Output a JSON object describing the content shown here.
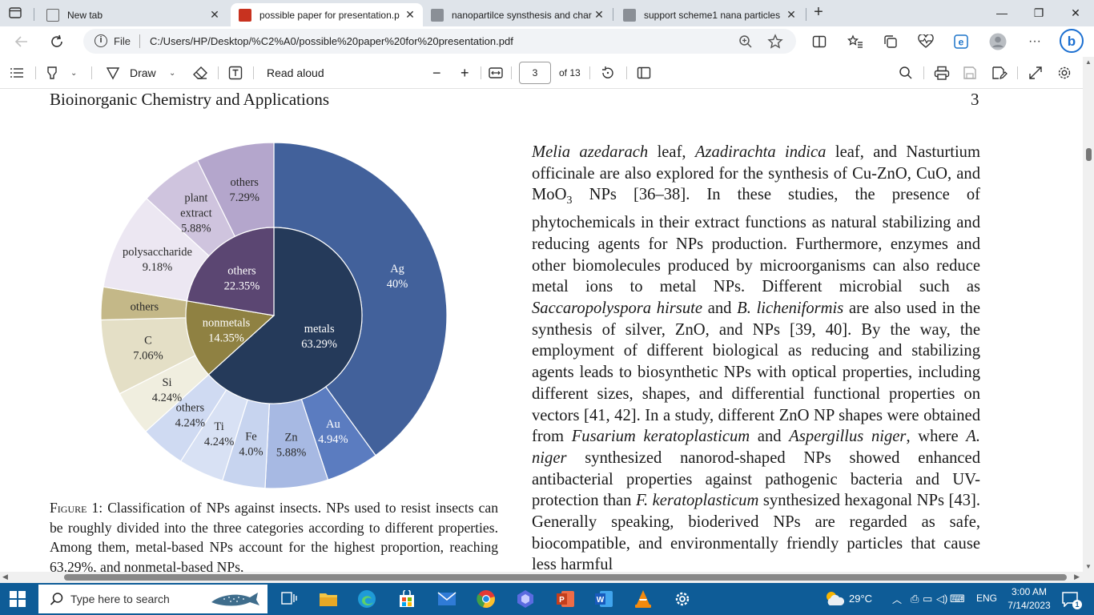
{
  "tabs": [
    {
      "label": "New tab",
      "icon": "newtab-page-icon"
    },
    {
      "label": "possible paper for presentation.p",
      "icon": "pdf-file-icon",
      "active": true
    },
    {
      "label": "nanopartilce synsthesis and char",
      "icon": "pdf-file-icon"
    },
    {
      "label": "support scheme1 nana particles",
      "icon": "pdf-file-icon"
    }
  ],
  "address": {
    "scheme_label": "File",
    "url": "C:/Users/HP/Desktop/%C2%A0/possible%20paper%20for%20presentation.pdf"
  },
  "pdf_toolbar": {
    "draw_label": "Draw",
    "read_aloud_label": "Read aloud",
    "page_current": "3",
    "page_total": "of 13"
  },
  "document": {
    "journal": "Bioinorganic Chemistry and Applications",
    "page_number": "3",
    "body_parts": [
      {
        "t": "Melia azedarach",
        "i": true
      },
      {
        "t": " leaf, "
      },
      {
        "t": "Azadirachta indica",
        "i": true
      },
      {
        "t": " leaf, and Nasturtium officinale are also explored for the synthesis of Cu-ZnO, CuO, and MoO"
      },
      {
        "t": "3",
        "sub": true
      },
      {
        "t": " NPs [36–38]. In these studies, the presence of phytochemicals in their extract functions as natural stabilizing and reducing agents for NPs production. Furthermore, enzymes and other biomolecules produced by microorganisms can also reduce metal ions to metal NPs. Different microbial such as "
      },
      {
        "t": "Saccaropolyspora hirsute",
        "i": true
      },
      {
        "t": " and "
      },
      {
        "t": "B. licheniformis",
        "i": true
      },
      {
        "t": " are also used in the synthesis of silver, ZnO, and NPs [39, 40]. By the way, the employment of different biological as reducing and stabilizing agents leads to biosynthetic NPs with optical properties, including different sizes, shapes, and differential functional properties on vectors [41, 42]. In a study, different ZnO NP shapes were obtained from "
      },
      {
        "t": "Fusarium keratoplasticum",
        "i": true
      },
      {
        "t": " and "
      },
      {
        "t": "Aspergillus niger",
        "i": true
      },
      {
        "t": ", where "
      },
      {
        "t": "A. niger",
        "i": true
      },
      {
        "t": " synthesized nanorod-shaped NPs showed enhanced antibacterial properties against pathogenic bacteria and UV-protection than "
      },
      {
        "t": "F. keratoplasticum",
        "i": true
      },
      {
        "t": " synthesized hexagonal NPs [43]. Generally speaking, bioderived NPs are regarded as safe, biocompatible, and environmentally friendly particles that cause less harmful"
      }
    ],
    "caption_label": "Figure 1:",
    "caption_text": " Classification of NPs against insects. NPs used to resist insects can be roughly divided into the three categories according to different properties. Among them, metal-based NPs account for the highest proportion, reaching 63.29%, and nonmetal-based NPs,"
  },
  "chart_data": {
    "type": "pie",
    "subtype": "sunburst",
    "inner": [
      {
        "label": "metals",
        "value": 63.29,
        "value_label": "63.29%",
        "color": "#253a5a"
      },
      {
        "label": "nonmetals",
        "value": 14.35,
        "value_label": "14.35%",
        "color": "#8f8142"
      },
      {
        "label": "others",
        "value": 22.35,
        "value_label": "22.35%",
        "color": "#5b4672"
      }
    ],
    "outer": [
      {
        "label": "Ag",
        "value": 40,
        "value_label": "40%",
        "color": "#42619b"
      },
      {
        "label": "Au",
        "value": 4.94,
        "value_label": "4.94%",
        "color": "#5b7cc0"
      },
      {
        "label": "Zn",
        "value": 5.88,
        "value_label": "5.88%",
        "color": "#a7b9e3"
      },
      {
        "label": "Fe",
        "value": 4.0,
        "value_label": "4.0%",
        "color": "#c7d4ef"
      },
      {
        "label": "Ti",
        "value": 4.24,
        "value_label": "4.24%",
        "color": "#d8e1f4"
      },
      {
        "label": "others",
        "value": 4.24,
        "value_label": "4.24%",
        "color": "#cfdaf2"
      },
      {
        "label": "Si",
        "value": 4.24,
        "value_label": "4.24%",
        "color": "#f0eedf"
      },
      {
        "label": "C",
        "value": 7.06,
        "value_label": "7.06%",
        "color": "#e4dfc6"
      },
      {
        "label": "others",
        "value": 3.06,
        "value_label": "",
        "color": "#c4b888"
      },
      {
        "label": "polysaccharide",
        "value": 9.18,
        "value_label": "9.18%",
        "color": "#ece7f2"
      },
      {
        "label": "plant extract",
        "value": 5.88,
        "value_label": "5.88%",
        "color": "#cfc4de"
      },
      {
        "label": "others",
        "value": 7.29,
        "value_label": "7.29%",
        "color": "#b4a6cc"
      }
    ]
  },
  "taskbar": {
    "search_placeholder": "Type here to search",
    "weather": "29°C",
    "lang": "ENG",
    "time": "3:00 AM",
    "date": "7/14/2023",
    "notification_count": "1"
  }
}
